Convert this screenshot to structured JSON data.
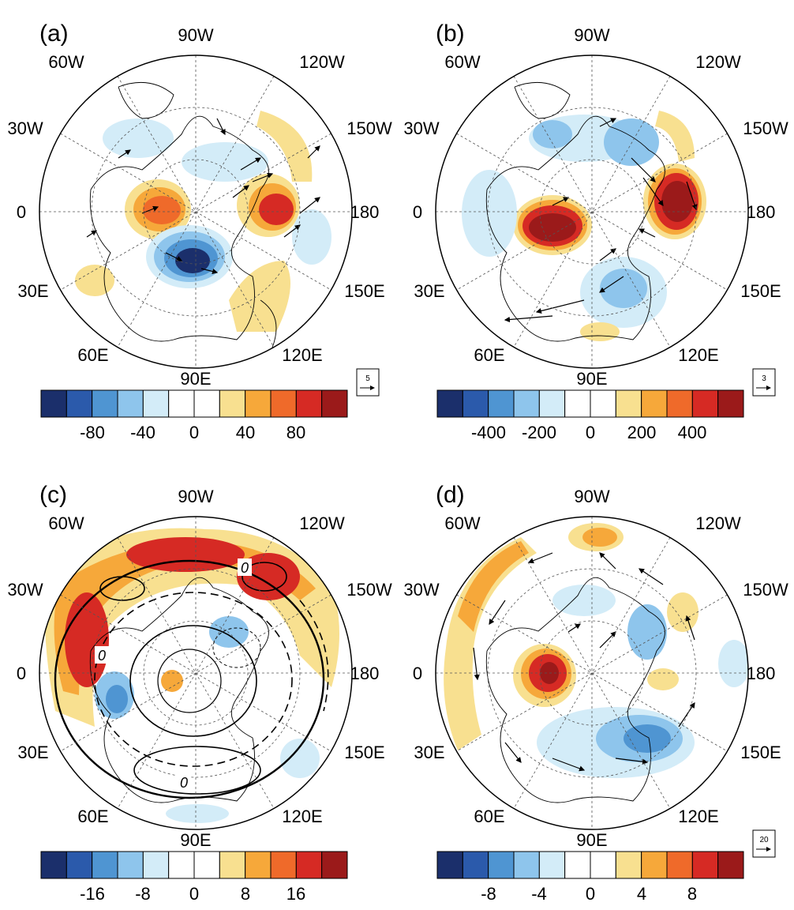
{
  "colorbar_colors": [
    "#1b2f6b",
    "#2b5aab",
    "#4f95d2",
    "#8ec5ec",
    "#d3ecf8",
    "#ffffff",
    "#ffffff",
    "#f8e090",
    "#f6a83a",
    "#ef6a2a",
    "#d62a24",
    "#9b1a1a"
  ],
  "panels": [
    {
      "label": "(a)",
      "lon_labels": {
        "top": "90W",
        "top_left": "60W",
        "top_right": "120W",
        "upper_left": "30W",
        "upper_right": "150W",
        "left": "0",
        "right": "180",
        "lower_left": "30E",
        "lower_right": "150E",
        "bottom_left": "60E",
        "bottom_right": "120E",
        "bottom": "90E"
      },
      "colorbar_ticks": [
        "-80",
        "-40",
        "0",
        "40",
        "80"
      ],
      "reference_vector": "5"
    },
    {
      "label": "(b)",
      "lon_labels": {
        "top": "90W",
        "top_left": "60W",
        "top_right": "120W",
        "upper_left": "30W",
        "upper_right": "150W",
        "left": "0",
        "right": "180",
        "lower_left": "30E",
        "lower_right": "150E",
        "bottom_left": "60E",
        "bottom_right": "120E",
        "bottom": "90E"
      },
      "colorbar_ticks": [
        "-400",
        "-200",
        "0",
        "200",
        "400"
      ],
      "reference_vector": "3"
    },
    {
      "label": "(c)",
      "lon_labels": {
        "top": "90W",
        "top_left": "60W",
        "top_right": "120W",
        "upper_left": "30W",
        "upper_right": "150W",
        "left": "0",
        "right": "180",
        "lower_left": "30E",
        "lower_right": "150E",
        "bottom_left": "60E",
        "bottom_right": "120E",
        "bottom": "90E"
      },
      "colorbar_ticks": [
        "-16",
        "-8",
        "0",
        "8",
        "16"
      ],
      "contour_labels": [
        "0",
        "0",
        "0"
      ]
    },
    {
      "label": "(d)",
      "lon_labels": {
        "top": "90W",
        "top_left": "60W",
        "top_right": "120W",
        "upper_left": "30W",
        "upper_right": "150W",
        "left": "0",
        "right": "180",
        "lower_left": "30E",
        "lower_right": "150E",
        "bottom_left": "60E",
        "bottom_right": "120E",
        "bottom": "90E"
      },
      "colorbar_ticks": [
        "-8",
        "-4",
        "0",
        "4",
        "8"
      ],
      "reference_vector": "20"
    }
  ]
}
